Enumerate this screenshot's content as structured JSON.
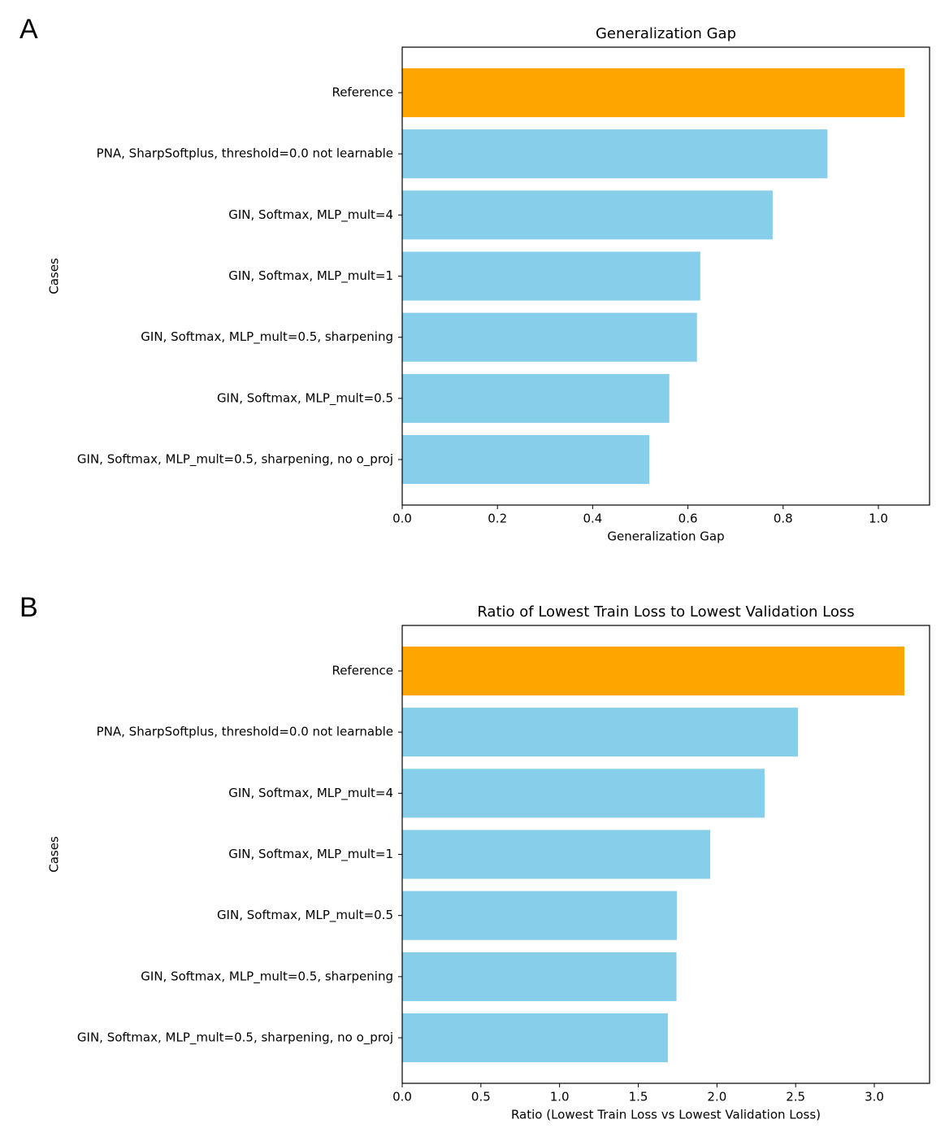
{
  "chart_data": [
    {
      "type": "barh",
      "panel": "A",
      "title": "Generalization Gap",
      "xlabel": "Generalization Gap",
      "ylabel": "Cases",
      "categories": [
        "Reference",
        "PNA, SharpSoftplus, threshold=0.0 not learnable",
        "GIN, Softmax, MLP_mult=4",
        "GIN, Softmax, MLP_mult=1",
        "GIN, Softmax, MLP_mult=0.5, sharpening",
        "GIN, Softmax, MLP_mult=0.5",
        "GIN, Softmax, MLP_mult=0.5, sharpening, no o_proj"
      ],
      "values": [
        1.055,
        0.893,
        0.778,
        0.626,
        0.619,
        0.561,
        0.519
      ],
      "colors": [
        "#ffa500",
        "#87ceeb",
        "#87ceeb",
        "#87ceeb",
        "#87ceeb",
        "#87ceeb",
        "#87ceeb"
      ],
      "xlim": [
        0,
        1.1075
      ],
      "xticks": [
        {
          "value": 0,
          "label": "0.0"
        },
        0.2,
        0.4,
        0.6,
        0.8,
        {
          "value": 1,
          "label": "1.0"
        }
      ]
    },
    {
      "type": "barh",
      "panel": "B",
      "title": "Ratio of Lowest Train Loss to Lowest Validation Loss",
      "xlabel": "Ratio (Lowest Train Loss vs Lowest Validation Loss)",
      "ylabel": "Cases",
      "categories": [
        "Reference",
        "PNA, SharpSoftplus, threshold=0.0 not learnable",
        "GIN, Softmax, MLP_mult=4",
        "GIN, Softmax, MLP_mult=1",
        "GIN, Softmax, MLP_mult=0.5",
        "GIN, Softmax, MLP_mult=0.5, sharpening",
        "GIN, Softmax, MLP_mult=0.5, sharpening, no o_proj"
      ],
      "values": [
        3.191,
        2.515,
        2.303,
        1.957,
        1.745,
        1.743,
        1.688
      ],
      "colors": [
        "#ffa500",
        "#87ceeb",
        "#87ceeb",
        "#87ceeb",
        "#87ceeb",
        "#87ceeb",
        "#87ceeb"
      ],
      "xlim": [
        0,
        3.351
      ],
      "xticks": [
        {
          "value": 0,
          "label": "0.0"
        },
        0.5,
        {
          "value": 1,
          "label": "1.0"
        },
        1.5,
        {
          "value": 2,
          "label": "2.0"
        },
        2.5,
        {
          "value": 3,
          "label": "3.0"
        }
      ]
    }
  ]
}
